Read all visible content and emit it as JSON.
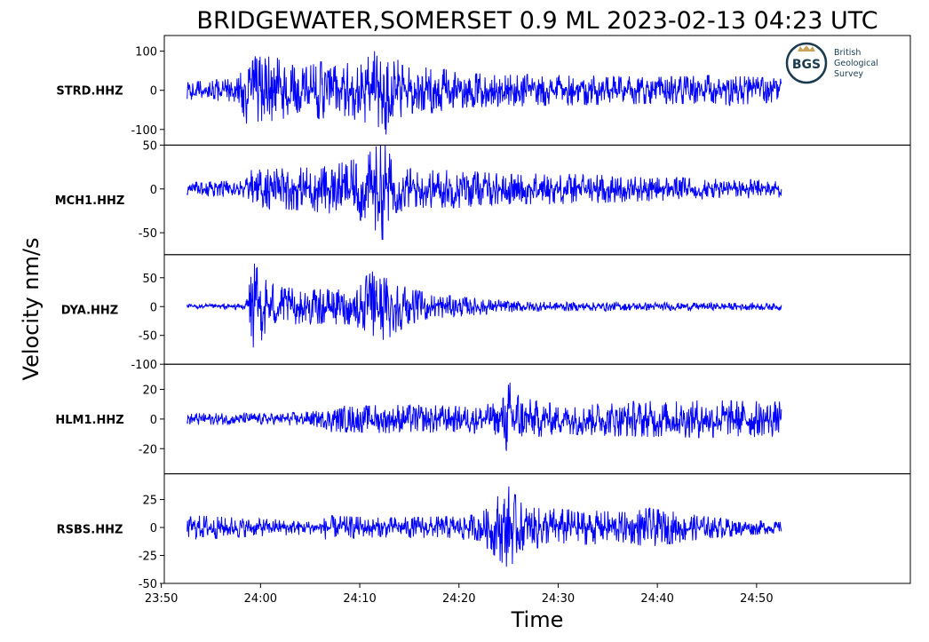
{
  "chart_data": {
    "type": "line",
    "title": "BRIDGEWATER,SOMERSET 0.9 ML   2023-02-13 04:23 UTC",
    "xlabel": "Time",
    "ylabel": "Velocity nm/s",
    "x_ticks": [
      "23:50",
      "24:00",
      "24:10",
      "24:20",
      "24:30",
      "24:40",
      "24:50"
    ],
    "x_range_minutes": [
      -9.7,
      65.5
    ],
    "trace_span_minutes": [
      -7.4,
      52.5
    ],
    "series_color": "#0000ff",
    "grid": false,
    "panels": [
      {
        "station": "STRD.HHZ",
        "ylim": [
          -140,
          140
        ],
        "yticks": [
          100,
          0,
          -100
        ],
        "ytick_labels": [
          "100",
          "0",
          "-100"
        ],
        "envelope": [
          [
            -7.4,
            24
          ],
          [
            -2.4,
            30
          ],
          [
            -1.8,
            95
          ],
          [
            2,
            85
          ],
          [
            4,
            55
          ],
          [
            6,
            75
          ],
          [
            8,
            65
          ],
          [
            10.5,
            85
          ],
          [
            12.5,
            120
          ],
          [
            14.5,
            60
          ],
          [
            18,
            60
          ],
          [
            20,
            45
          ],
          [
            30,
            40
          ],
          [
            40,
            35
          ],
          [
            47,
            40
          ],
          [
            52.5,
            30
          ]
        ]
      },
      {
        "station": "MCH1.HHZ",
        "ylim": [
          -75,
          50
        ],
        "yticks": [
          50,
          0,
          -50
        ],
        "ytick_labels": [
          "50",
          "0",
          "-50"
        ],
        "envelope": [
          [
            -7.4,
            8
          ],
          [
            -1.5,
            10
          ],
          [
            -1,
            22
          ],
          [
            4,
            25
          ],
          [
            8,
            30
          ],
          [
            10.5,
            38
          ],
          [
            12.3,
            60
          ],
          [
            13.5,
            28
          ],
          [
            16,
            22
          ],
          [
            20,
            22
          ],
          [
            24,
            18
          ],
          [
            30,
            18
          ],
          [
            35,
            16
          ],
          [
            40,
            14
          ],
          [
            45,
            12
          ],
          [
            52.5,
            10
          ]
        ]
      },
      {
        "station": "DYA.HHZ",
        "ylim": [
          -100,
          90
        ],
        "yticks": [
          50,
          0,
          -50,
          -100
        ],
        "ytick_labels": [
          "50",
          "0",
          "-50",
          "-100"
        ],
        "envelope": [
          [
            -7.4,
            4
          ],
          [
            -1.5,
            5
          ],
          [
            -1,
            85
          ],
          [
            1,
            40
          ],
          [
            4,
            30
          ],
          [
            9,
            32
          ],
          [
            11.5,
            65
          ],
          [
            13,
            55
          ],
          [
            15,
            30
          ],
          [
            20,
            18
          ],
          [
            25,
            10
          ],
          [
            30,
            8
          ],
          [
            40,
            7
          ],
          [
            52.5,
            6
          ]
        ]
      },
      {
        "station": "HLM1.HHZ",
        "ylim": [
          -37,
          37
        ],
        "yticks": [
          20,
          0,
          -20
        ],
        "ytick_labels": [
          "20",
          "0",
          "-20"
        ],
        "envelope": [
          [
            -7.4,
            4
          ],
          [
            2,
            4
          ],
          [
            6.5,
            6
          ],
          [
            7,
            9
          ],
          [
            15,
            10
          ],
          [
            20,
            9
          ],
          [
            24,
            11
          ],
          [
            25,
            26
          ],
          [
            27,
            14
          ],
          [
            30,
            10
          ],
          [
            36,
            12
          ],
          [
            45,
            13
          ],
          [
            52.5,
            12
          ]
        ]
      },
      {
        "station": "RSBS.HHZ",
        "ylim": [
          -50,
          48
        ],
        "yticks": [
          25,
          0,
          -25,
          -50
        ],
        "ytick_labels": [
          "25",
          "0",
          "-25",
          "-50"
        ],
        "envelope": [
          [
            -7.4,
            9
          ],
          [
            -6.5,
            11
          ],
          [
            0,
            8
          ],
          [
            6,
            6
          ],
          [
            6.5,
            11
          ],
          [
            12,
            9
          ],
          [
            18,
            10
          ],
          [
            22,
            12
          ],
          [
            25,
            38
          ],
          [
            26.5,
            20
          ],
          [
            30,
            17
          ],
          [
            37,
            14
          ],
          [
            39,
            18
          ],
          [
            45,
            10
          ],
          [
            52.5,
            5
          ]
        ]
      }
    ]
  },
  "logo": {
    "abbr": "BGS",
    "line1": "British",
    "line2": "Geological",
    "line3": "Survey"
  }
}
